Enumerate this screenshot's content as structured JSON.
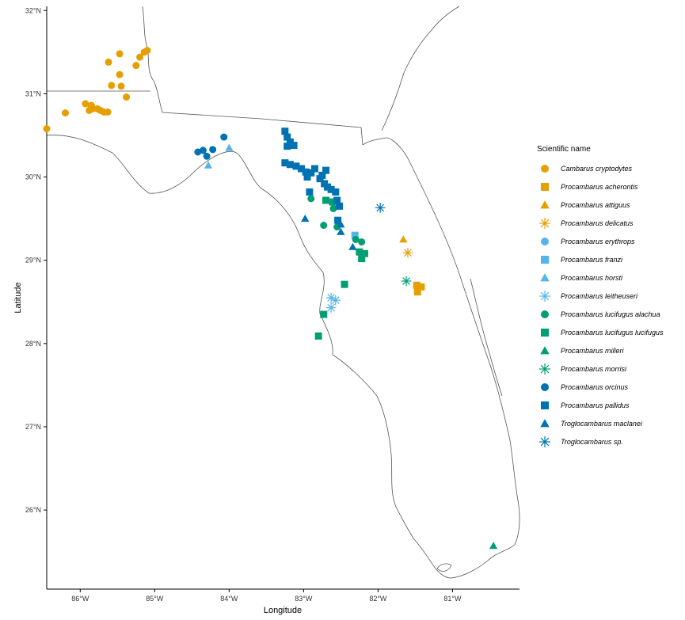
{
  "chart_data": {
    "type": "scatter",
    "xlabel": "Longitude",
    "ylabel": "Latitude",
    "xlim": [
      -86.45,
      -80.1
    ],
    "ylim": [
      25.05,
      32.05
    ],
    "x_ticks": [
      {
        "value": -86,
        "label": "86°W"
      },
      {
        "value": -85,
        "label": "85°W"
      },
      {
        "value": -84,
        "label": "84°W"
      },
      {
        "value": -83,
        "label": "83°W"
      },
      {
        "value": -82,
        "label": "82°W"
      },
      {
        "value": -81,
        "label": "81°W"
      }
    ],
    "y_ticks": [
      {
        "value": 26,
        "label": "26°N"
      },
      {
        "value": 27,
        "label": "27°N"
      },
      {
        "value": 28,
        "label": "28°N"
      },
      {
        "value": 29,
        "label": "29°N"
      },
      {
        "value": 30,
        "label": "30°N"
      },
      {
        "value": 31,
        "label": "31°N"
      },
      {
        "value": 32,
        "label": "32°N"
      }
    ],
    "grid": false,
    "legend_position": "right",
    "legend_title": "Scientific name",
    "series": [
      {
        "name": "Cambarus cryptodytes",
        "color": "#E69F00",
        "shape": "circle",
        "points": [
          [
            -85.1,
            31.52
          ],
          [
            -85.14,
            31.5
          ],
          [
            -85.2,
            31.44
          ],
          [
            -85.25,
            31.34
          ],
          [
            -85.47,
            31.48
          ],
          [
            -85.62,
            31.38
          ],
          [
            -85.47,
            31.23
          ],
          [
            -85.45,
            31.09
          ],
          [
            -85.58,
            31.1
          ],
          [
            -85.38,
            30.96
          ],
          [
            -85.93,
            30.88
          ],
          [
            -86.2,
            30.77
          ],
          [
            -86.45,
            30.58
          ],
          [
            -85.85,
            30.86
          ],
          [
            -85.83,
            30.82
          ],
          [
            -85.77,
            30.82
          ],
          [
            -85.73,
            30.8
          ],
          [
            -85.68,
            30.78
          ],
          [
            -85.63,
            30.78
          ],
          [
            -85.88,
            30.8
          ]
        ]
      },
      {
        "name": "Procambarus acherontis",
        "color": "#E69F00",
        "shape": "square",
        "points": [
          [
            -81.48,
            28.7
          ],
          [
            -81.42,
            28.68
          ],
          [
            -81.47,
            28.62
          ]
        ]
      },
      {
        "name": "Procambarus attiguus",
        "color": "#E69F00",
        "shape": "triangle",
        "points": [
          [
            -81.66,
            29.25
          ]
        ]
      },
      {
        "name": "Procambarus delicatus",
        "color": "#E69F00",
        "shape": "asterisk",
        "points": [
          [
            -81.6,
            29.09
          ]
        ]
      },
      {
        "name": "Procambarus erythrops",
        "color": "#56B4E9",
        "shape": "circle",
        "points": []
      },
      {
        "name": "Procambarus franzi",
        "color": "#56B4E9",
        "shape": "square",
        "points": [
          [
            -82.31,
            29.3
          ]
        ]
      },
      {
        "name": "Procambarus horsti",
        "color": "#56B4E9",
        "shape": "triangle",
        "points": [
          [
            -84.0,
            30.35
          ],
          [
            -84.28,
            30.14
          ]
        ]
      },
      {
        "name": "Procambarus leitheuseri",
        "color": "#56B4E9",
        "shape": "asterisk",
        "points": [
          [
            -82.63,
            28.55
          ],
          [
            -82.57,
            28.52
          ],
          [
            -82.63,
            28.43
          ]
        ]
      },
      {
        "name": "Procambarus lucifugus alachua",
        "color": "#009E73",
        "shape": "circle",
        "points": [
          [
            -82.9,
            29.74
          ],
          [
            -82.6,
            29.62
          ],
          [
            -82.3,
            29.25
          ],
          [
            -82.22,
            29.22
          ],
          [
            -82.55,
            29.4
          ],
          [
            -82.73,
            29.42
          ]
        ]
      },
      {
        "name": "Procambarus lucifugus lucifugus",
        "color": "#009E73",
        "shape": "square",
        "points": [
          [
            -82.7,
            29.72
          ],
          [
            -82.61,
            29.7
          ],
          [
            -82.25,
            29.1
          ],
          [
            -82.18,
            29.08
          ],
          [
            -82.22,
            29.02
          ],
          [
            -82.45,
            28.71
          ],
          [
            -82.73,
            28.35
          ],
          [
            -82.8,
            28.09
          ]
        ]
      },
      {
        "name": "Procambarus milleri",
        "color": "#009E73",
        "shape": "triangle",
        "points": [
          [
            -80.45,
            25.57
          ]
        ]
      },
      {
        "name": "Procambarus morrisi",
        "color": "#009E73",
        "shape": "asterisk",
        "points": [
          [
            -81.62,
            28.75
          ]
        ]
      },
      {
        "name": "Procambarus orcinus",
        "color": "#0072B2",
        "shape": "circle",
        "points": [
          [
            -84.07,
            30.48
          ],
          [
            -84.22,
            30.33
          ],
          [
            -84.35,
            30.32
          ],
          [
            -84.42,
            30.3
          ],
          [
            -84.3,
            30.25
          ]
        ]
      },
      {
        "name": "Procambarus pallidus",
        "color": "#0072B2",
        "shape": "square",
        "points": [
          [
            -83.25,
            30.55
          ],
          [
            -83.22,
            30.48
          ],
          [
            -83.18,
            30.42
          ],
          [
            -83.22,
            30.37
          ],
          [
            -83.13,
            30.38
          ],
          [
            -83.25,
            30.17
          ],
          [
            -83.18,
            30.15
          ],
          [
            -83.1,
            30.13
          ],
          [
            -83.03,
            30.1
          ],
          [
            -82.97,
            30.06
          ],
          [
            -82.9,
            30.05
          ],
          [
            -82.85,
            30.1
          ],
          [
            -82.75,
            30.02
          ],
          [
            -82.7,
            30.08
          ],
          [
            -82.95,
            30.0
          ],
          [
            -82.78,
            29.98
          ],
          [
            -82.72,
            29.92
          ],
          [
            -82.68,
            29.88
          ],
          [
            -82.63,
            29.85
          ],
          [
            -82.57,
            29.82
          ],
          [
            -82.92,
            29.82
          ],
          [
            -82.55,
            29.72
          ],
          [
            -82.52,
            29.65
          ],
          [
            -82.54,
            29.48
          ]
        ]
      },
      {
        "name": "Troglocambarus maclanei",
        "color": "#0072B2",
        "shape": "triangle",
        "points": [
          [
            -82.98,
            29.5
          ],
          [
            -82.5,
            29.34
          ],
          [
            -82.5,
            29.43
          ],
          [
            -82.34,
            29.16
          ]
        ]
      },
      {
        "name": "Troglocambarus sp.",
        "color": "#0072B2",
        "shape": "asterisk",
        "points": [
          [
            -81.97,
            29.63
          ]
        ]
      }
    ]
  }
}
